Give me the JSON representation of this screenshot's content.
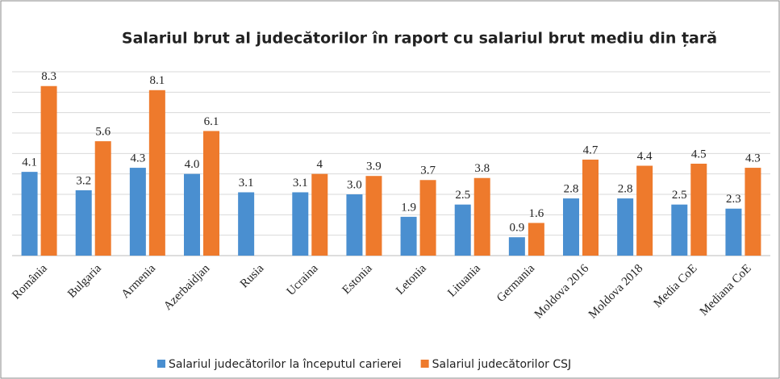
{
  "chart_data": {
    "type": "bar",
    "title": "Salariul brut al judecătorilor în raport cu salariul brut mediu din țară",
    "categories": [
      "România",
      "Bulgaria",
      "Armenia",
      "Azerbaidjan",
      "Rusia",
      "Ucraina",
      "Estonia",
      "Letonia",
      "Lituania",
      "Germania",
      "Moldova 2016",
      "Moldova 2018",
      "Media CoE",
      "Mediana CoE"
    ],
    "series": [
      {
        "name": "Salariul judecătorilor la începutul carierei",
        "color": "#4a8fd0",
        "values": [
          4.1,
          3.2,
          4.3,
          4.0,
          3.1,
          3.1,
          3.0,
          1.9,
          2.5,
          0.9,
          2.8,
          2.8,
          2.5,
          2.3
        ],
        "value_labels": [
          "4.1",
          "3.2",
          "4.3",
          "4.0",
          "3.1",
          "3.1",
          "3.0",
          "1.9",
          "2.5",
          "0.9",
          "2.8",
          "2.8",
          "2.5",
          "2.3"
        ]
      },
      {
        "name": "Salariul judecătorilor CSJ",
        "color": "#ee7a2c",
        "values": [
          8.3,
          5.6,
          8.1,
          6.1,
          null,
          4,
          3.9,
          3.7,
          3.8,
          1.6,
          4.7,
          4.4,
          4.5,
          4.3
        ]
      }
    ],
    "ylim": [
      0,
      9
    ],
    "yticks": [
      0,
      1,
      2,
      3,
      4,
      5,
      6,
      7,
      8,
      9
    ],
    "ytick_labels": false,
    "grid": true,
    "legend": "bottom"
  }
}
